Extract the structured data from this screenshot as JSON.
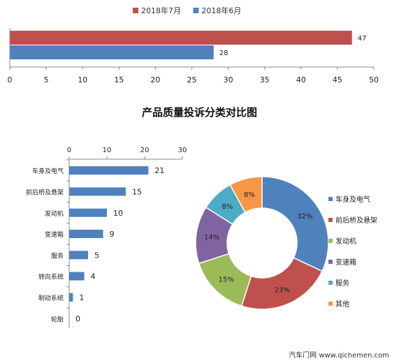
{
  "page_title": "产品质量投诉分类对比图",
  "watermark": "汽车门网 www.qichemen.com",
  "chart_data": [
    {
      "type": "bar",
      "orientation": "horizontal",
      "title": "",
      "series": [
        {
          "name": "2018年7月",
          "values": [
            47
          ],
          "color": "#c0504d"
        },
        {
          "name": "2018年6月",
          "values": [
            28
          ],
          "color": "#4f81bd"
        }
      ],
      "xlim": [
        0,
        50
      ],
      "ticks": [
        0,
        5,
        10,
        15,
        20,
        25,
        30,
        35,
        40,
        45,
        50
      ],
      "legend_position": "top",
      "grid": false
    },
    {
      "type": "bar",
      "orientation": "horizontal",
      "categories": [
        "车身及电气",
        "前后桥及悬架",
        "发动机",
        "变速箱",
        "服务",
        "转向系统",
        "制动系统",
        "轮胎"
      ],
      "values": [
        21,
        15,
        10,
        9,
        5,
        4,
        1,
        0
      ],
      "xlim": [
        0,
        30
      ],
      "ticks": [
        0,
        10,
        20,
        30
      ],
      "axis_position": "top",
      "color": "#4f81bd",
      "grid": false
    },
    {
      "type": "pie",
      "style": "donut",
      "labels": [
        "车身及电气",
        "前后桥及悬架",
        "发动机",
        "变速箱",
        "服务",
        "其他"
      ],
      "values": [
        32,
        23,
        15,
        14,
        8,
        8
      ],
      "value_labels": [
        "32%",
        "23%",
        "15%",
        "14%",
        "8%",
        "8%"
      ],
      "colors": [
        "#4f81bd",
        "#c0504d",
        "#9bbb59",
        "#8064a2",
        "#4bacc6",
        "#f79646"
      ],
      "legend_position": "right"
    }
  ]
}
